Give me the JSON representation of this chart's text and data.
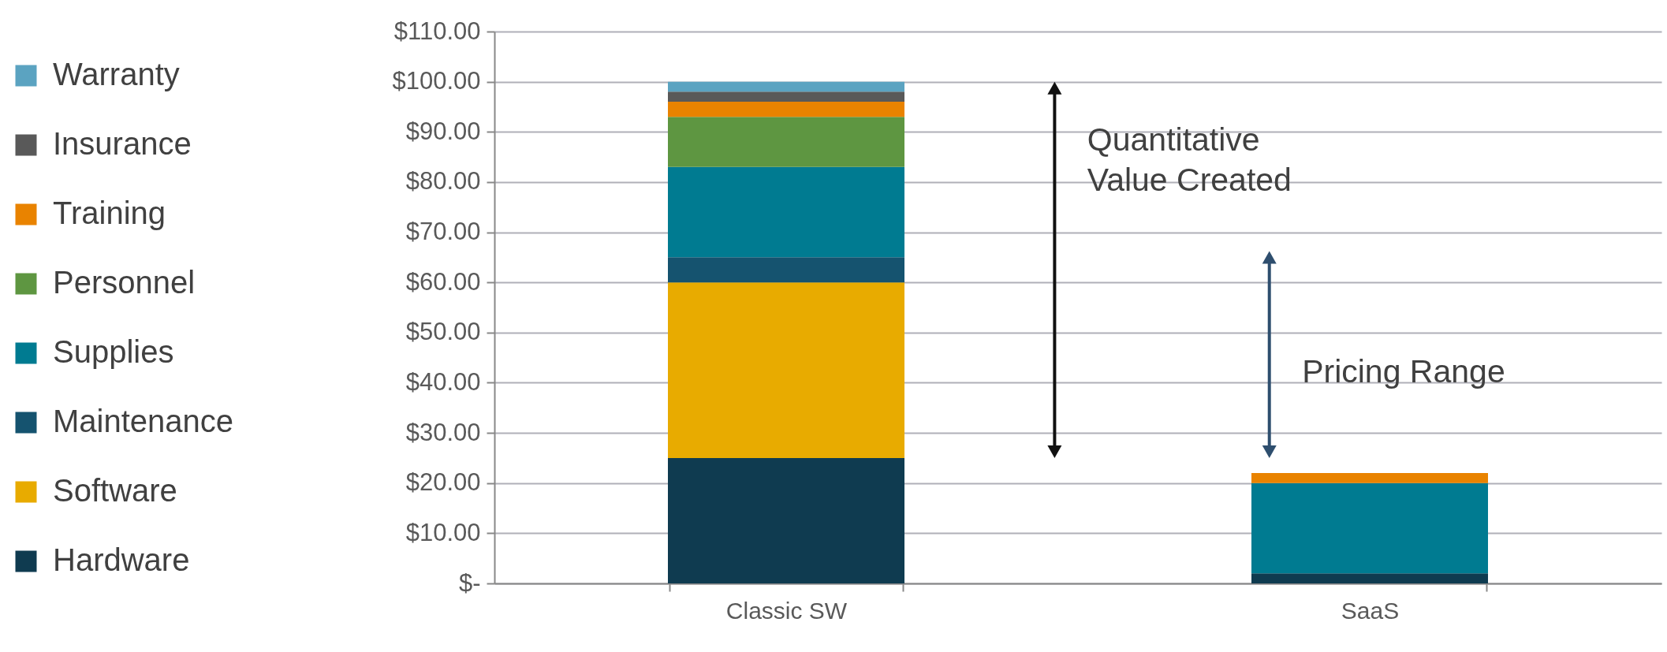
{
  "chart_data": {
    "type": "bar",
    "stacked": true,
    "categories": [
      "Classic SW",
      "SaaS"
    ],
    "series": [
      {
        "name": "Hardware",
        "color": "#0f3b50",
        "values": [
          25,
          2
        ]
      },
      {
        "name": "Software",
        "color": "#e8ab00",
        "values": [
          35,
          0
        ]
      },
      {
        "name": "Maintenance",
        "color": "#15536f",
        "values": [
          5,
          0
        ]
      },
      {
        "name": "Supplies",
        "color": "#007b91",
        "values": [
          18,
          18
        ]
      },
      {
        "name": "Personnel",
        "color": "#5e9641",
        "values": [
          10,
          0
        ]
      },
      {
        "name": "Training",
        "color": "#e98300",
        "values": [
          3,
          2
        ]
      },
      {
        "name": "Insurance",
        "color": "#595959",
        "values": [
          2,
          0
        ]
      },
      {
        "name": "Warranty",
        "color": "#5ba3c1",
        "values": [
          2,
          0
        ]
      }
    ],
    "ylim": [
      0,
      110
    ],
    "yticks": [
      {
        "value": 0,
        "label": "$-"
      },
      {
        "value": 10,
        "label": "$10.00"
      },
      {
        "value": 20,
        "label": "$20.00"
      },
      {
        "value": 30,
        "label": "$30.00"
      },
      {
        "value": 40,
        "label": "$40.00"
      },
      {
        "value": 50,
        "label": "$50.00"
      },
      {
        "value": 60,
        "label": "$60.00"
      },
      {
        "value": 70,
        "label": "$70.00"
      },
      {
        "value": 80,
        "label": "$80.00"
      },
      {
        "value": 90,
        "label": "$90.00"
      },
      {
        "value": 100,
        "label": "$100.00"
      },
      {
        "value": 110,
        "label": "$110.00"
      }
    ],
    "grid": "y",
    "legend": "left",
    "annotations": [
      "Quantitative Value Created",
      "Pricing Range"
    ]
  }
}
